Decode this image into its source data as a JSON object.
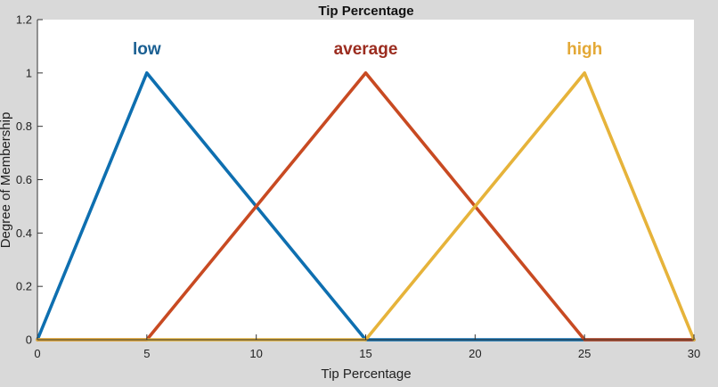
{
  "chart_data": {
    "type": "line",
    "title": "Tip Percentage",
    "xlabel": "Tip Percentage",
    "ylabel": "Degree of Membership",
    "xlim": [
      0,
      30
    ],
    "ylim": [
      0,
      1.2
    ],
    "xticks": [
      "0",
      "5",
      "10",
      "15",
      "20",
      "25",
      "30"
    ],
    "yticks": [
      "0",
      "0.2",
      "0.4",
      "0.6",
      "0.8",
      "1",
      "1.2"
    ],
    "grid": false,
    "series": [
      {
        "name": "low",
        "color": "#0e6fb0",
        "x": [
          0,
          5,
          15,
          30
        ],
        "y": [
          0,
          1,
          0,
          0
        ]
      },
      {
        "name": "average",
        "color": "#c84a22",
        "x": [
          0,
          5,
          15,
          25,
          30
        ],
        "y": [
          0,
          0,
          1,
          0,
          0
        ]
      },
      {
        "name": "high",
        "color": "#e6b33a",
        "x": [
          0,
          15,
          25,
          30
        ],
        "y": [
          0,
          0,
          1,
          0
        ]
      }
    ],
    "labels": [
      {
        "text": "low",
        "x": 5,
        "y": 1.07,
        "color": "#1a5f92"
      },
      {
        "text": "average",
        "x": 15,
        "y": 1.07,
        "color": "#9b2c1f"
      },
      {
        "text": "high",
        "x": 25,
        "y": 1.07,
        "color": "#e3a836"
      }
    ]
  }
}
